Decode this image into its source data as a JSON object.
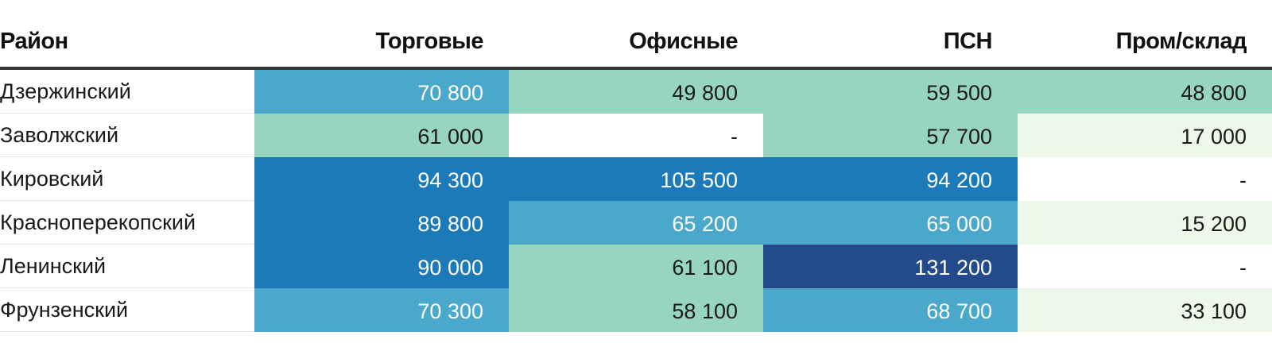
{
  "chart_data": {
    "type": "heatmap",
    "columns": [
      "Район",
      "Торговые",
      "Офисные",
      "ПСН",
      "Пром/склад"
    ],
    "rows": [
      {
        "label": "Дзержинский",
        "values": [
          70800,
          49800,
          59500,
          48800
        ]
      },
      {
        "label": "Заволжский",
        "values": [
          61000,
          null,
          57700,
          17000
        ]
      },
      {
        "label": "Кировский",
        "values": [
          94300,
          105500,
          94200,
          null
        ]
      },
      {
        "label": "Красноперекопский",
        "values": [
          89800,
          65200,
          65000,
          15200
        ]
      },
      {
        "label": "Ленинский",
        "values": [
          90000,
          61100,
          131200,
          null
        ]
      },
      {
        "label": "Фрунзенский",
        "values": [
          70300,
          58100,
          68700,
          33100
        ]
      }
    ],
    "missing_symbol": "-",
    "thousands_separator": " ",
    "color_scale": {
      "empty": "#ffffff",
      "stops": [
        {
          "max": 40000,
          "color": "#edf8e9"
        },
        {
          "max": 62000,
          "color": "#97d5c0"
        },
        {
          "max": 80000,
          "color": "#4aa8cb"
        },
        {
          "max": 110000,
          "color": "#1d7ab8"
        },
        {
          "max": 1000000,
          "color": "#234b8c"
        }
      ],
      "light_text": "#ffffff",
      "dark_text": "#1a1a1a",
      "light_text_above": 62000
    }
  }
}
